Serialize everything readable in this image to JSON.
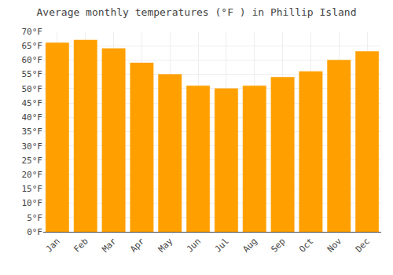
{
  "chart_data": {
    "type": "bar",
    "title": "Average monthly temperatures (°F ) in Phillip Island",
    "categories": [
      "Jan",
      "Feb",
      "Mar",
      "Apr",
      "May",
      "Jun",
      "Jul",
      "Aug",
      "Sep",
      "Oct",
      "Nov",
      "Dec"
    ],
    "values": [
      66,
      67,
      64,
      59,
      55,
      51,
      50,
      51,
      54,
      56,
      60,
      63
    ],
    "color": "#FFA000",
    "ylim": [
      0,
      70
    ],
    "yticks": [
      {
        "value": 0,
        "label": "0°F"
      },
      {
        "value": 5,
        "label": "5°F"
      },
      {
        "value": 10,
        "label": "10°F"
      },
      {
        "value": 15,
        "label": "15°F"
      },
      {
        "value": 20,
        "label": "20°F"
      },
      {
        "value": 25,
        "label": "25°F"
      },
      {
        "value": 30,
        "label": "30°F"
      },
      {
        "value": 35,
        "label": "35°F"
      },
      {
        "value": 40,
        "label": "40°F"
      },
      {
        "value": 45,
        "label": "45°F"
      },
      {
        "value": 50,
        "label": "50°F"
      },
      {
        "value": 55,
        "label": "55°F"
      },
      {
        "value": 60,
        "label": "60°F"
      },
      {
        "value": 65,
        "label": "65°F"
      },
      {
        "value": 70,
        "label": "70°F"
      }
    ],
    "grid": true
  }
}
